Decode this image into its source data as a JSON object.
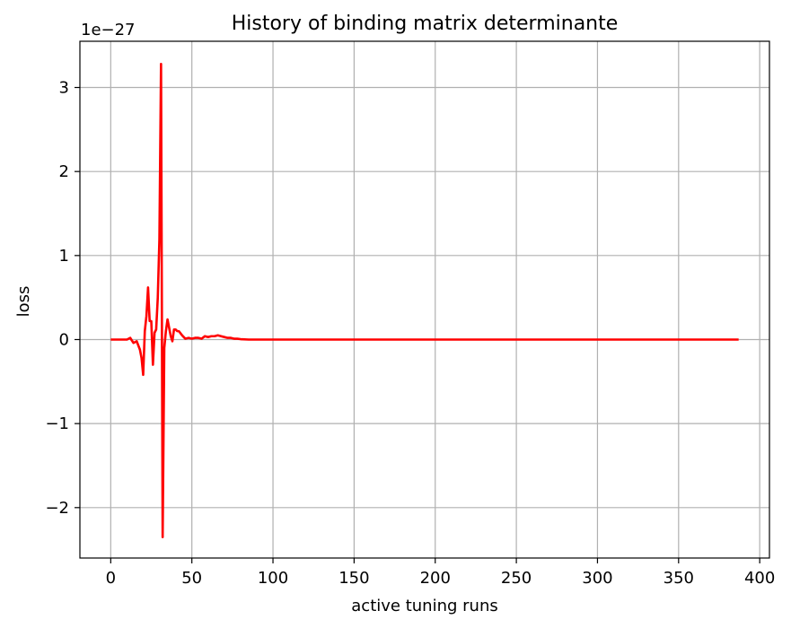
{
  "chart_data": {
    "type": "line",
    "title": "History of binding matrix determinante",
    "xlabel": "active tuning runs",
    "ylabel": "loss",
    "offset_text": "1e−27",
    "xlim": [
      -19,
      406
    ],
    "ylim": [
      -2.6,
      3.55
    ],
    "x_ticks": [
      0,
      50,
      100,
      150,
      200,
      250,
      300,
      350,
      400
    ],
    "x_tick_labels": [
      "0",
      "50",
      "100",
      "150",
      "200",
      "250",
      "300",
      "350",
      "400"
    ],
    "y_ticks": [
      -2,
      -1,
      0,
      1,
      2,
      3
    ],
    "y_tick_labels": [
      "−2",
      "−1",
      "0",
      "1",
      "2",
      "3"
    ],
    "grid": true,
    "series": [
      {
        "color": "#ff0000",
        "x": [
          0,
          5,
          10,
          12,
          14,
          16,
          18,
          19,
          20,
          21,
          22,
          23,
          24,
          25,
          26,
          27,
          28,
          29,
          30,
          31,
          32,
          33,
          34,
          35,
          36,
          37,
          38,
          39,
          40,
          41,
          42,
          44,
          46,
          48,
          50,
          52,
          54,
          56,
          58,
          60,
          62,
          64,
          66,
          68,
          70,
          72,
          74,
          76,
          78,
          80,
          85,
          100,
          150,
          200,
          250,
          300,
          350,
          387
        ],
        "y": [
          0,
          0,
          0,
          0.02,
          -0.04,
          -0.02,
          -0.12,
          -0.22,
          -0.42,
          0.1,
          0.28,
          0.62,
          0.22,
          0.22,
          -0.3,
          0.08,
          0.12,
          0.5,
          1.2,
          3.28,
          -2.35,
          -0.1,
          0.1,
          0.24,
          0.14,
          0.04,
          -0.02,
          0.12,
          0.12,
          0.1,
          0.1,
          0.05,
          0.01,
          0.02,
          0.01,
          0.02,
          0.02,
          0.01,
          0.04,
          0.03,
          0.04,
          0.04,
          0.05,
          0.04,
          0.03,
          0.02,
          0.02,
          0.01,
          0.01,
          0.005,
          0,
          0,
          0,
          0,
          0,
          0,
          0,
          0
        ]
      }
    ]
  }
}
